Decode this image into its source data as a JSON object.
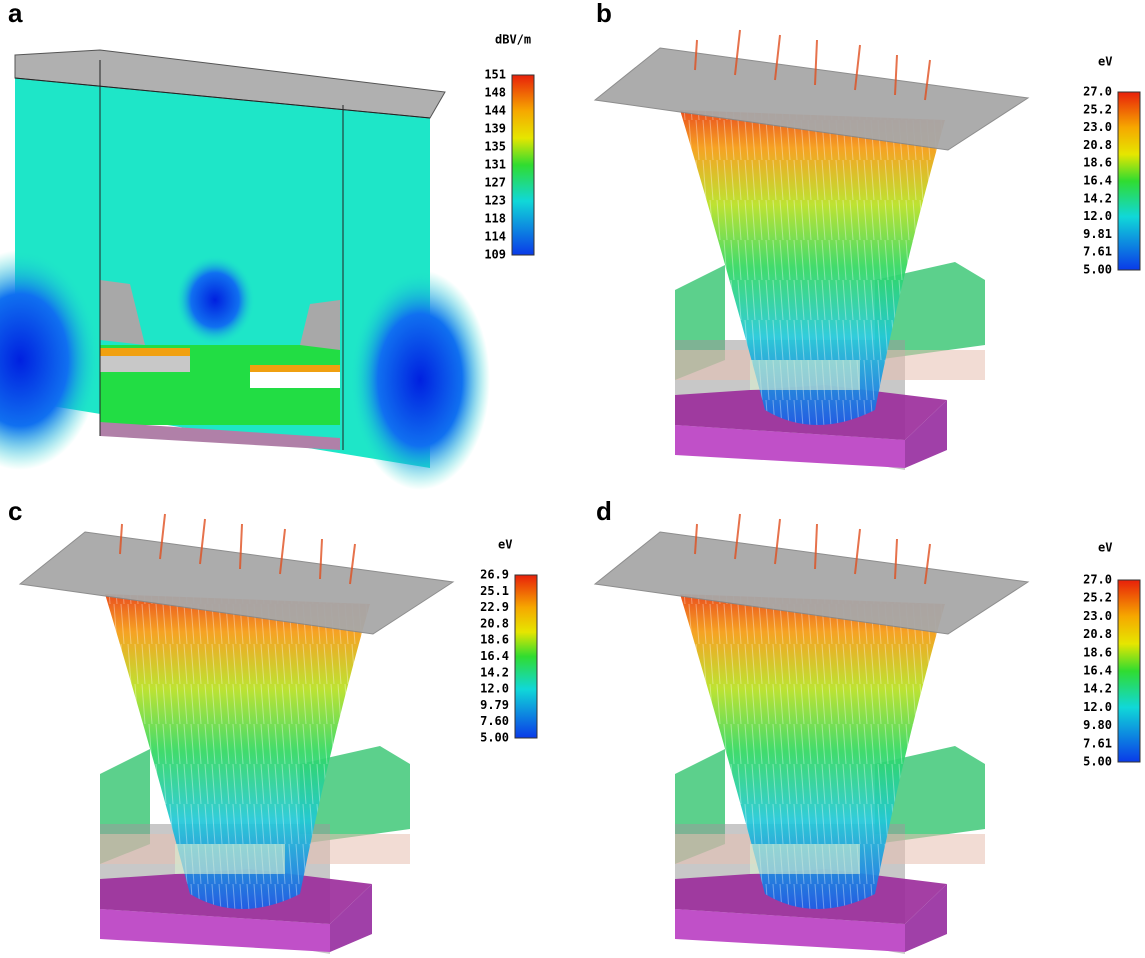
{
  "panels": [
    {
      "label": "a",
      "unit": "dBV/m",
      "colorbar_ticks": [
        "151",
        "148",
        "144",
        "139",
        "135",
        "131",
        "127",
        "123",
        "118",
        "114",
        "109"
      ]
    },
    {
      "label": "b",
      "unit": "eV",
      "colorbar_ticks": [
        "27.0",
        "25.2",
        "23.0",
        "20.8",
        "18.6",
        "16.4",
        "14.2",
        "12.0",
        "9.81",
        "7.61",
        "5.00"
      ]
    },
    {
      "label": "c",
      "unit": "eV",
      "colorbar_ticks": [
        "26.9",
        "25.1",
        "22.9",
        "20.8",
        "18.6",
        "16.4",
        "14.2",
        "12.0",
        "9.79",
        "7.60",
        "5.00"
      ]
    },
    {
      "label": "d",
      "unit": "eV",
      "colorbar_ticks": [
        "27.0",
        "25.2",
        "23.0",
        "20.8",
        "18.6",
        "16.4",
        "14.2",
        "12.0",
        "9.80",
        "7.61",
        "5.00"
      ]
    }
  ]
}
